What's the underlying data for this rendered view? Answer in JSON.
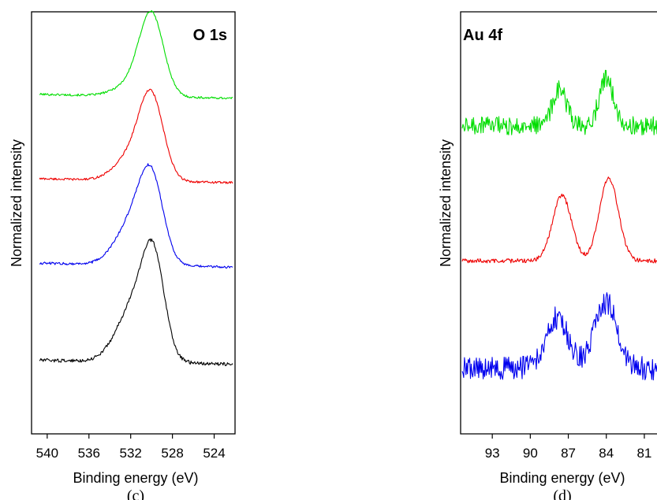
{
  "chart_data": [
    {
      "type": "line",
      "panel": "(c)",
      "title": "O 1s",
      "xlabel": "Binding energy (eV)",
      "ylabel": "Normalized intensity",
      "xlim": [
        541.5,
        522
      ],
      "x_reversed": true,
      "xticks": [
        540,
        536,
        532,
        528,
        524
      ],
      "series": [
        {
          "color": "#00dd00",
          "baseline": 0.795,
          "shoulder": 0.03,
          "peak": 0.99,
          "noise": 0.0025,
          "center": 530.0,
          "width": 1.15,
          "shoulder_center": 531.8,
          "shoulder_width": 1.6,
          "tail": 0.01
        },
        {
          "color": "#ee0000",
          "baseline": 0.595,
          "shoulder": 0.06,
          "peak": 0.795,
          "noise": 0.0025,
          "center": 530.0,
          "width": 1.15,
          "shoulder_center": 531.8,
          "shoulder_width": 1.6,
          "tail": 0.01
        },
        {
          "color": "#0000ee",
          "baseline": 0.395,
          "shoulder": 0.1,
          "peak": 0.605,
          "noise": 0.003,
          "center": 530.0,
          "width": 1.15,
          "shoulder_center": 531.8,
          "shoulder_width": 1.6,
          "tail": 0.01
        },
        {
          "color": "#000000",
          "baseline": 0.165,
          "shoulder": 0.14,
          "peak": 0.405,
          "noise": 0.004,
          "center": 529.8,
          "width": 1.05,
          "shoulder_center": 531.5,
          "shoulder_width": 1.7,
          "tail": 0.01
        }
      ]
    },
    {
      "type": "line",
      "panel": "(d)",
      "title": "Au 4f",
      "xlabel": "Binding energy (eV)",
      "ylabel": "Normalized intensity",
      "xlim": [
        95.5,
        80
      ],
      "x_reversed": true,
      "xticks": [
        93,
        90,
        87,
        84,
        81
      ],
      "series": [
        {
          "color": "#00dd00",
          "baseline": 0.73,
          "p1": 0.085,
          "p2": 0.113,
          "noise": 0.022,
          "c1": 87.7,
          "c2": 84.0,
          "width": 0.55
        },
        {
          "color": "#ee0000",
          "baseline": 0.41,
          "p1": 0.155,
          "p2": 0.195,
          "noise": 0.005,
          "c1": 87.5,
          "c2": 83.8,
          "width": 0.75
        },
        {
          "color": "#0000ee",
          "baseline": 0.155,
          "p1": 0.12,
          "p2": 0.155,
          "noise": 0.028,
          "c1": 87.9,
          "c2": 84.0,
          "width": 0.9
        }
      ]
    }
  ],
  "captions": {
    "c": "(c)",
    "d": "(d)"
  }
}
